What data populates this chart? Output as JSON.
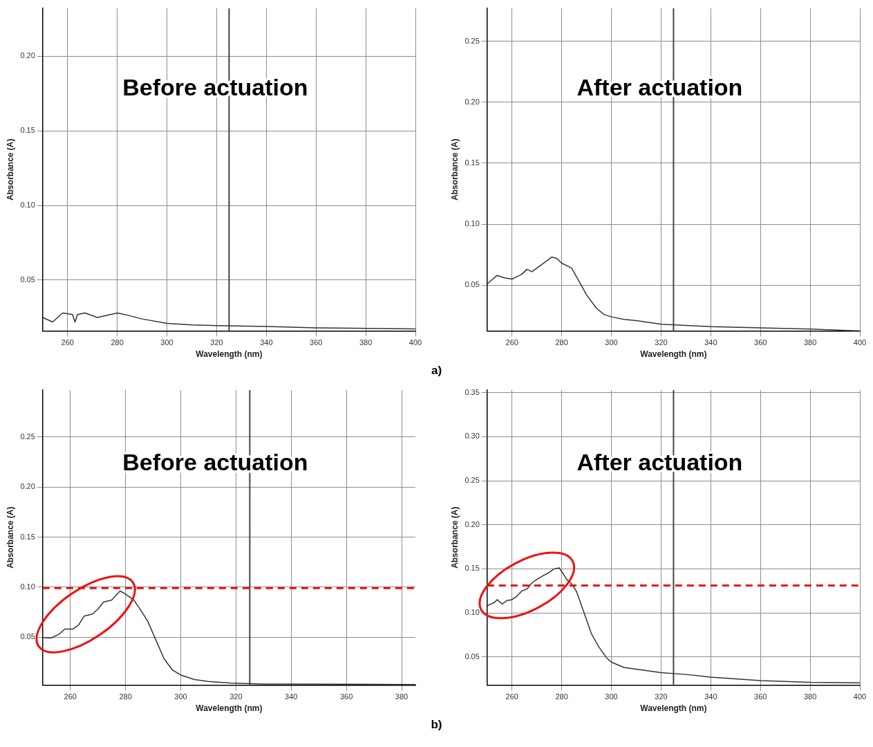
{
  "chart_data": [
    {
      "type": "line",
      "title": "Before actuation",
      "xlabel": "Wavelength (nm)",
      "ylabel": "Absorbance (A)",
      "annotations": [
        "a)"
      ],
      "x": [
        250,
        254,
        258,
        262,
        263,
        264,
        267,
        272,
        280,
        283,
        290,
        300,
        310,
        320,
        340,
        360,
        380,
        400
      ],
      "series": [
        {
          "color": "#333333",
          "values": [
            0.025,
            0.022,
            0.028,
            0.027,
            0.022,
            0.027,
            0.028,
            0.025,
            0.028,
            0.027,
            0.024,
            0.021,
            0.02,
            0.0195,
            0.019,
            0.018,
            0.0177,
            0.0174
          ]
        }
      ],
      "xlim": [
        250,
        400
      ],
      "xticks": [
        260,
        280,
        300,
        320,
        340,
        360,
        380,
        400
      ],
      "ylim": [
        0.016,
        0.232
      ],
      "yticks": [
        {
          "value": 0.05,
          "label": "0.05"
        },
        {
          "value": 0.1,
          "label": "0.10"
        },
        {
          "value": 0.15,
          "label": "0.15"
        },
        {
          "value": 0.2,
          "label": "0.20"
        }
      ],
      "ref_lines": [
        {
          "axis": "x",
          "value": 325,
          "color": "#444444"
        }
      ],
      "grid": true
    },
    {
      "type": "line",
      "title": "After actuation",
      "xlabel": "Wavelength (nm)",
      "ylabel": "Absorbance (A)",
      "x": [
        250,
        254,
        257,
        260,
        262,
        264,
        266,
        268,
        270,
        272,
        276,
        278,
        280,
        284,
        287,
        290,
        294,
        297,
        300,
        305,
        310,
        320,
        330,
        340,
        360,
        380,
        400
      ],
      "series": [
        {
          "color": "#333333",
          "values": [
            0.051,
            0.058,
            0.056,
            0.055,
            0.057,
            0.059,
            0.063,
            0.061,
            0.064,
            0.067,
            0.073,
            0.072,
            0.068,
            0.064,
            0.053,
            0.042,
            0.031,
            0.026,
            0.024,
            0.022,
            0.021,
            0.018,
            0.017,
            0.016,
            0.015,
            0.014,
            0.0125
          ]
        }
      ],
      "xlim": [
        250,
        400
      ],
      "xticks": [
        260,
        280,
        300,
        320,
        340,
        360,
        380,
        400
      ],
      "ylim": [
        0.0125,
        0.277
      ],
      "yticks": [
        {
          "value": 0.05,
          "label": "0.05"
        },
        {
          "value": 0.1,
          "label": "0.10"
        },
        {
          "value": 0.15,
          "label": "0.15"
        },
        {
          "value": 0.2,
          "label": "0.20"
        },
        {
          "value": 0.25,
          "label": "0.25"
        }
      ],
      "ref_lines": [
        {
          "axis": "x",
          "value": 325,
          "color": "#444444"
        }
      ],
      "grid": true
    },
    {
      "type": "line",
      "title": "Before actuation",
      "xlabel": "Wavelength (nm)",
      "ylabel": "Absorbance (A)",
      "annotations": [
        "b)"
      ],
      "x": [
        250,
        253,
        256,
        258,
        261,
        263,
        265,
        268,
        270,
        272,
        275,
        278,
        280,
        283,
        285,
        288,
        291,
        294,
        297,
        300,
        305,
        310,
        318,
        330,
        340,
        360,
        385
      ],
      "series": [
        {
          "color": "#333333",
          "values": [
            0.0495,
            0.049,
            0.053,
            0.058,
            0.058,
            0.062,
            0.071,
            0.073,
            0.078,
            0.085,
            0.087,
            0.096,
            0.093,
            0.087,
            0.079,
            0.066,
            0.047,
            0.028,
            0.017,
            0.012,
            0.0075,
            0.0056,
            0.004,
            0.003,
            0.003,
            0.0028,
            0.0025
          ]
        }
      ],
      "xlim": [
        250,
        385
      ],
      "xticks": [
        260,
        280,
        300,
        320,
        340,
        360,
        380
      ],
      "ylim": [
        0.002,
        0.297
      ],
      "yticks": [
        {
          "value": 0.05,
          "label": "0.05"
        },
        {
          "value": 0.1,
          "label": "0.10"
        },
        {
          "value": 0.15,
          "label": "0.15"
        },
        {
          "value": 0.2,
          "label": "0.20"
        },
        {
          "value": 0.25,
          "label": "0.25"
        }
      ],
      "ref_lines": [
        {
          "axis": "x",
          "value": 325,
          "color": "#444444"
        },
        {
          "axis": "y",
          "value": 0.099,
          "color": "#ee1111",
          "line_style": "dashed"
        }
      ],
      "grid": true
    },
    {
      "type": "line",
      "title": "After actuation",
      "xlabel": "Wavelength (nm)",
      "ylabel": "Absorbance (A)",
      "x": [
        250,
        253,
        254,
        256,
        258,
        260,
        262,
        264,
        266,
        268,
        270,
        273,
        275,
        277,
        279,
        280,
        282,
        284,
        286,
        289,
        292,
        295,
        298,
        300,
        305,
        310,
        320,
        330,
        340,
        350,
        360,
        380,
        400
      ],
      "series": [
        {
          "color": "#333333",
          "values": [
            0.108,
            0.112,
            0.115,
            0.11,
            0.114,
            0.115,
            0.119,
            0.125,
            0.127,
            0.134,
            0.138,
            0.143,
            0.146,
            0.15,
            0.151,
            0.147,
            0.138,
            0.133,
            0.124,
            0.1,
            0.076,
            0.061,
            0.049,
            0.044,
            0.038,
            0.036,
            0.032,
            0.03,
            0.027,
            0.025,
            0.023,
            0.021,
            0.0205
          ]
        }
      ],
      "xlim": [
        250,
        400
      ],
      "xticks": [
        260,
        280,
        300,
        320,
        340,
        360,
        380,
        400
      ],
      "ylim": [
        0.018,
        0.353
      ],
      "yticks": [
        {
          "value": 0.05,
          "label": "0.05"
        },
        {
          "value": 0.1,
          "label": "0.10"
        },
        {
          "value": 0.15,
          "label": "0.15"
        },
        {
          "value": 0.2,
          "label": "0.20"
        },
        {
          "value": 0.25,
          "label": "0.25"
        },
        {
          "value": 0.3,
          "label": "0.30"
        },
        {
          "value": 0.35,
          "label": "0.35"
        }
      ],
      "ref_lines": [
        {
          "axis": "x",
          "value": 325,
          "color": "#444444"
        },
        {
          "axis": "y",
          "value": 0.131,
          "color": "#ee1111",
          "line_style": "dashed"
        }
      ],
      "grid": true
    }
  ]
}
